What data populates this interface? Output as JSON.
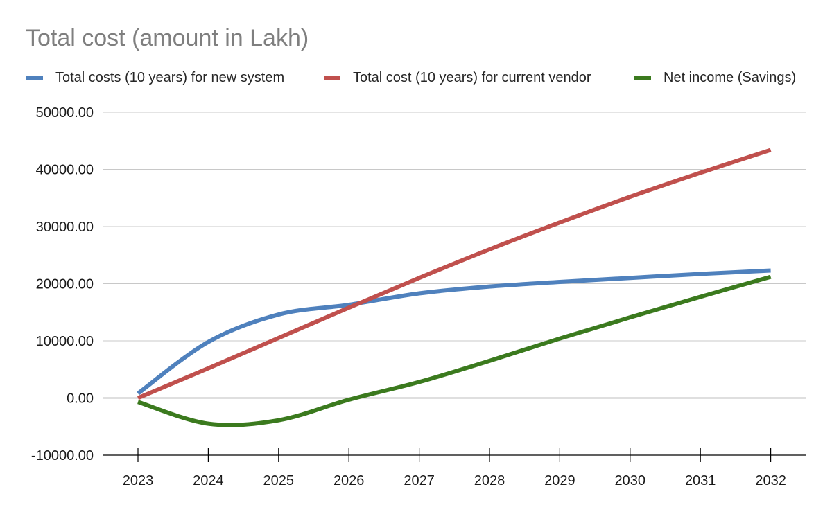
{
  "chart_data": {
    "type": "line",
    "title": "Total cost (amount in Lakh)",
    "xlabel": "",
    "ylabel": "",
    "categories": [
      "2023",
      "2024",
      "2025",
      "2026",
      "2027",
      "2028",
      "2029",
      "2030",
      "2031",
      "2032"
    ],
    "ylim": [
      -10000,
      50000
    ],
    "yticks": [
      "50000.00",
      "40000.00",
      "30000.00",
      "20000.00",
      "10000.00",
      "0.00",
      "-10000.00"
    ],
    "grid": true,
    "legend_position": "top",
    "series": [
      {
        "name": "Total costs (10 years) for new system",
        "color": "#4f81bd",
        "values": [
          800,
          9800,
          14600,
          16300,
          18300,
          19500,
          20300,
          21000,
          21700,
          22300
        ]
      },
      {
        "name": "Total cost (10 years) for current vendor",
        "color": "#c0504d",
        "values": [
          0,
          5200,
          10500,
          15800,
          21000,
          26000,
          30700,
          35200,
          39400,
          43400
        ]
      },
      {
        "name": "Net income (Savings)",
        "color": "#3b7a1e",
        "values": [
          -700,
          -4500,
          -3900,
          -300,
          2800,
          6500,
          10400,
          14100,
          17700,
          21200
        ]
      }
    ]
  }
}
